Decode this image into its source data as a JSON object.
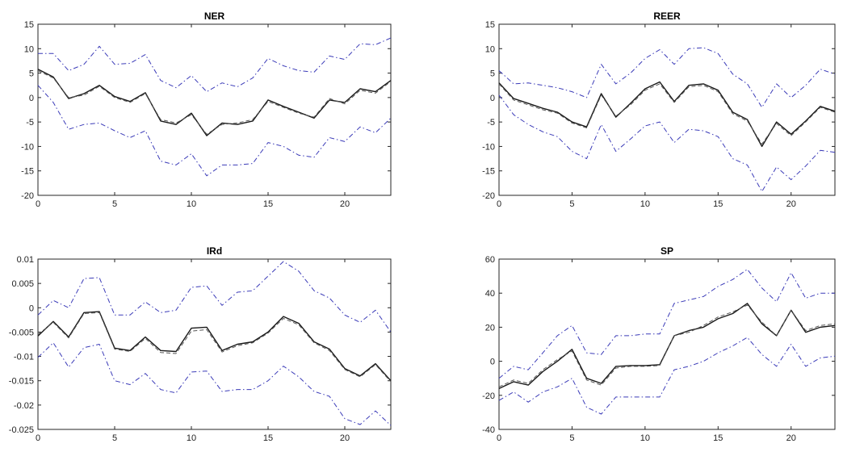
{
  "chart_data": [
    {
      "type": "line",
      "title": "NER",
      "xlim": [
        0,
        23
      ],
      "ylim": [
        -20,
        15
      ],
      "xticks": [
        0,
        5,
        10,
        15,
        20
      ],
      "yticks": [
        -20,
        -15,
        -10,
        -5,
        0,
        5,
        10,
        15
      ],
      "ytick_labels": [
        "-20",
        "-15",
        "-10",
        "-5",
        "0",
        "5",
        "10",
        "15"
      ],
      "x": [
        0,
        1,
        2,
        3,
        4,
        5,
        6,
        7,
        8,
        9,
        10,
        11,
        12,
        13,
        14,
        15,
        16,
        17,
        18,
        19,
        20,
        21,
        22,
        23
      ],
      "series": [
        {
          "style": "solid",
          "color": "#1a1a1a",
          "values": [
            5.8,
            4.2,
            -0.2,
            0.8,
            2.5,
            0.2,
            -0.8,
            1.0,
            -4.8,
            -5.5,
            -3.2,
            -7.8,
            -5.2,
            -5.5,
            -4.8,
            -0.5,
            -1.8,
            -3.0,
            -4.2,
            -0.5,
            -1.0,
            1.8,
            1.2,
            3.5
          ]
        },
        {
          "style": "dashed",
          "color": "#555555",
          "values": [
            5.5,
            4.0,
            0.0,
            0.5,
            2.3,
            0.0,
            -1.0,
            0.8,
            -4.5,
            -5.2,
            -3.5,
            -7.5,
            -5.5,
            -5.2,
            -4.5,
            -0.8,
            -2.0,
            -3.2,
            -4.0,
            -0.2,
            -1.3,
            1.5,
            0.9,
            3.3
          ]
        },
        {
          "style": "dashdot",
          "color": "#3b3bb8",
          "values": [
            9.0,
            9.0,
            5.5,
            6.8,
            10.5,
            6.8,
            7.0,
            8.8,
            3.5,
            2.0,
            4.5,
            1.2,
            3.0,
            2.2,
            4.0,
            8.0,
            6.5,
            5.5,
            5.2,
            8.5,
            7.8,
            11.0,
            10.8,
            12.2
          ]
        },
        {
          "style": "dashdot",
          "color": "#3b3bb8",
          "values": [
            2.5,
            -1.0,
            -6.5,
            -5.5,
            -5.2,
            -6.8,
            -8.2,
            -6.8,
            -13.0,
            -13.8,
            -11.5,
            -16.0,
            -13.8,
            -13.8,
            -13.5,
            -9.2,
            -10.0,
            -11.8,
            -12.2,
            -8.2,
            -9.0,
            -6.0,
            -7.2,
            -4.2
          ]
        }
      ]
    },
    {
      "type": "line",
      "title": "REER",
      "xlim": [
        0,
        23
      ],
      "ylim": [
        -20,
        15
      ],
      "xticks": [
        0,
        5,
        10,
        15,
        20
      ],
      "yticks": [
        -20,
        -15,
        -10,
        -5,
        0,
        5,
        10,
        15
      ],
      "ytick_labels": [
        "-20",
        "-15",
        "-10",
        "-5",
        "0",
        "5",
        "10",
        "15"
      ],
      "x": [
        0,
        1,
        2,
        3,
        4,
        5,
        6,
        7,
        8,
        9,
        10,
        11,
        12,
        13,
        14,
        15,
        16,
        17,
        18,
        19,
        20,
        21,
        22,
        23
      ],
      "series": [
        {
          "style": "solid",
          "color": "#1a1a1a",
          "values": [
            3.0,
            -0.2,
            -1.2,
            -2.2,
            -3.0,
            -5.0,
            -6.0,
            0.8,
            -4.0,
            -1.2,
            1.8,
            3.2,
            -0.8,
            2.5,
            2.8,
            1.5,
            -3.0,
            -4.5,
            -10.0,
            -5.0,
            -7.5,
            -4.8,
            -1.8,
            -2.8
          ]
        },
        {
          "style": "dashed",
          "color": "#555555",
          "values": [
            2.8,
            -0.5,
            -1.5,
            -2.5,
            -3.2,
            -5.2,
            -6.2,
            0.5,
            -3.8,
            -1.5,
            1.5,
            2.8,
            -1.0,
            2.2,
            2.5,
            1.2,
            -3.3,
            -4.8,
            -9.5,
            -5.3,
            -7.8,
            -5.0,
            -2.0,
            -3.0
          ]
        },
        {
          "style": "dashdot",
          "color": "#3b3bb8",
          "values": [
            5.5,
            2.8,
            3.0,
            2.5,
            2.0,
            1.2,
            0.0,
            6.8,
            2.8,
            5.0,
            8.0,
            9.8,
            6.8,
            10.0,
            10.2,
            9.0,
            4.8,
            2.8,
            -2.0,
            2.8,
            0.0,
            2.5,
            5.8,
            4.8
          ]
        },
        {
          "style": "dashdot",
          "color": "#3b3bb8",
          "values": [
            0.5,
            -3.5,
            -5.5,
            -7.0,
            -8.0,
            -11.0,
            -12.5,
            -5.5,
            -11.0,
            -8.5,
            -5.8,
            -5.0,
            -9.2,
            -6.5,
            -6.8,
            -8.0,
            -12.5,
            -13.8,
            -19.2,
            -14.2,
            -16.8,
            -14.0,
            -10.8,
            -11.2
          ]
        }
      ]
    },
    {
      "type": "line",
      "title": "IRd",
      "xlim": [
        0,
        23
      ],
      "ylim": [
        -0.025,
        0.01
      ],
      "xticks": [
        0,
        5,
        10,
        15,
        20
      ],
      "yticks": [
        -0.025,
        -0.02,
        -0.015,
        -0.01,
        -0.005,
        0,
        0.005,
        0.01
      ],
      "ytick_labels": [
        "-0.025",
        "-0.02",
        "-0.015",
        "-0.01",
        "-0.005",
        "0",
        "0.005",
        "0.01"
      ],
      "x": [
        0,
        1,
        2,
        3,
        4,
        5,
        6,
        7,
        8,
        9,
        10,
        11,
        12,
        13,
        14,
        15,
        16,
        17,
        18,
        19,
        20,
        21,
        22,
        23
      ],
      "series": [
        {
          "style": "solid",
          "color": "#1a1a1a",
          "values": [
            -0.0058,
            -0.0028,
            -0.006,
            -0.001,
            -0.0008,
            -0.0083,
            -0.0088,
            -0.006,
            -0.0088,
            -0.009,
            -0.0042,
            -0.004,
            -0.0088,
            -0.0075,
            -0.007,
            -0.005,
            -0.0018,
            -0.0032,
            -0.007,
            -0.0085,
            -0.0125,
            -0.014,
            -0.0115,
            -0.015
          ]
        },
        {
          "style": "dashed",
          "color": "#555555",
          "values": [
            -0.0055,
            -0.003,
            -0.0062,
            -0.0012,
            -0.001,
            -0.0085,
            -0.009,
            -0.0063,
            -0.0092,
            -0.0094,
            -0.0048,
            -0.0045,
            -0.0091,
            -0.0078,
            -0.0072,
            -0.0052,
            -0.0022,
            -0.0035,
            -0.0072,
            -0.0088,
            -0.0127,
            -0.0142,
            -0.0117,
            -0.0152
          ]
        },
        {
          "style": "dashdot",
          "color": "#3b3bb8",
          "values": [
            -0.0015,
            0.0015,
            0.0,
            0.006,
            0.0062,
            -0.0015,
            -0.0015,
            0.0012,
            -0.001,
            -0.0005,
            0.0042,
            0.0045,
            0.0005,
            0.0032,
            0.0035,
            0.0065,
            0.0095,
            0.0075,
            0.0035,
            0.002,
            -0.0015,
            -0.003,
            -0.0005,
            -0.005
          ]
        },
        {
          "style": "dashdot",
          "color": "#3b3bb8",
          "values": [
            -0.0102,
            -0.0072,
            -0.0122,
            -0.0082,
            -0.0075,
            -0.015,
            -0.0158,
            -0.0135,
            -0.0168,
            -0.0175,
            -0.0132,
            -0.013,
            -0.0172,
            -0.0168,
            -0.0168,
            -0.015,
            -0.012,
            -0.0142,
            -0.0172,
            -0.0182,
            -0.0228,
            -0.024,
            -0.0212,
            -0.0242
          ]
        }
      ]
    },
    {
      "type": "line",
      "title": "SP",
      "xlim": [
        0,
        23
      ],
      "ylim": [
        -40,
        60
      ],
      "xticks": [
        0,
        5,
        10,
        15,
        20
      ],
      "yticks": [
        -40,
        -20,
        0,
        20,
        40,
        60
      ],
      "ytick_labels": [
        "-40",
        "-20",
        "0",
        "20",
        "40",
        "60"
      ],
      "x": [
        0,
        1,
        2,
        3,
        4,
        5,
        6,
        7,
        8,
        9,
        10,
        11,
        12,
        13,
        14,
        15,
        16,
        17,
        18,
        19,
        20,
        21,
        22,
        23
      ],
      "series": [
        {
          "style": "solid",
          "color": "#1a1a1a",
          "values": [
            -16,
            -12,
            -14,
            -6,
            0,
            7,
            -10,
            -13,
            -3,
            -2.5,
            -2.5,
            -2,
            15,
            18,
            20,
            25,
            28,
            34,
            22,
            15,
            30,
            17,
            20,
            21
          ]
        },
        {
          "style": "dashed",
          "color": "#555555",
          "values": [
            -15,
            -11,
            -13,
            -5,
            1,
            6,
            -11,
            -14,
            -4,
            -3,
            -3,
            -2.5,
            15,
            17,
            21,
            26,
            29,
            33,
            23,
            15,
            30,
            18,
            21,
            22
          ]
        },
        {
          "style": "dashdot",
          "color": "#3b3bb8",
          "values": [
            -10,
            -3,
            -5,
            5,
            15,
            21,
            5,
            4,
            15,
            15,
            16,
            16,
            34,
            36,
            38,
            44,
            48,
            54,
            43,
            35,
            52,
            37,
            40,
            40
          ]
        },
        {
          "style": "dashdot",
          "color": "#3b3bb8",
          "values": [
            -23,
            -18,
            -24,
            -18,
            -15,
            -10,
            -27,
            -31,
            -21,
            -21,
            -21,
            -21,
            -5,
            -3,
            0,
            5,
            9,
            14,
            4,
            -3,
            10,
            -3,
            2,
            3
          ]
        }
      ]
    }
  ]
}
